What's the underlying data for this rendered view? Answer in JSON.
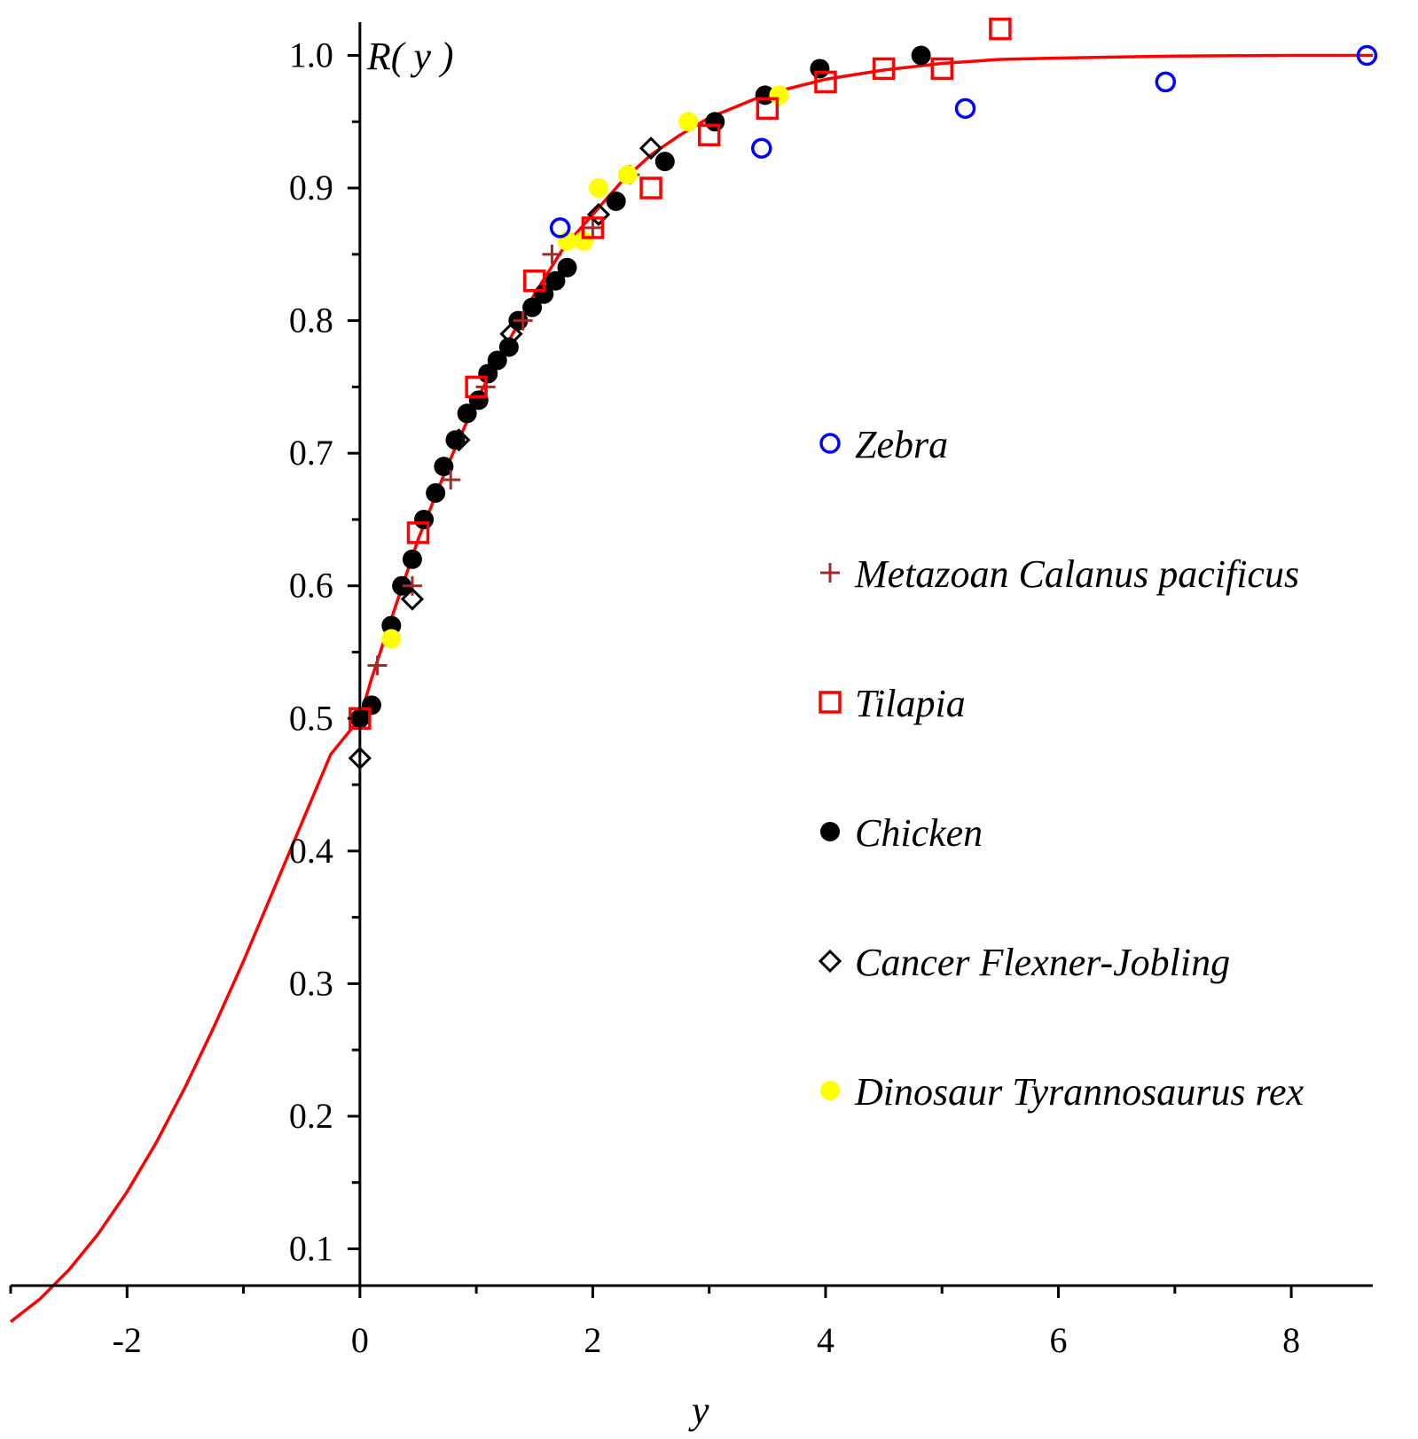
{
  "chart_data": {
    "type": "scatter",
    "title": "",
    "xlabel": "y",
    "ylabel": "R( y )",
    "xlim": [
      -3,
      8.7
    ],
    "ylim": [
      0.045,
      1.035
    ],
    "xticks": [
      -2,
      0,
      2,
      4,
      6,
      8
    ],
    "xtick_labels": [
      "-2",
      "0",
      "2",
      "4",
      "6",
      "8"
    ],
    "yticks": [
      0.1,
      0.2,
      0.3,
      0.4,
      0.5,
      0.6,
      0.7,
      0.8,
      0.9,
      1.0
    ],
    "ytick_labels": [
      "0.1",
      "0.2",
      "0.3",
      "0.4",
      "0.5",
      "0.6",
      "0.7",
      "0.8",
      "0.9",
      "1.0"
    ],
    "grid": false,
    "legend_position": "center-right",
    "curve": {
      "name": "Fitted curve",
      "color": "#ff0000",
      "points": [
        [
          -3.0,
          0.045
        ],
        [
          -2.75,
          0.062
        ],
        [
          -2.5,
          0.084
        ],
        [
          -2.25,
          0.111
        ],
        [
          -2.0,
          0.143
        ],
        [
          -1.75,
          0.18
        ],
        [
          -1.5,
          0.222
        ],
        [
          -1.25,
          0.268
        ],
        [
          -1.0,
          0.317
        ],
        [
          -0.75,
          0.369
        ],
        [
          -0.5,
          0.421
        ],
        [
          -0.25,
          0.473
        ],
        [
          0.0,
          0.5
        ],
        [
          0.1,
          0.53
        ],
        [
          0.25,
          0.57
        ],
        [
          0.5,
          0.635
        ],
        [
          0.75,
          0.69
        ],
        [
          1.0,
          0.74
        ],
        [
          1.25,
          0.78
        ],
        [
          1.5,
          0.82
        ],
        [
          1.75,
          0.855
        ],
        [
          2.0,
          0.88
        ],
        [
          2.25,
          0.905
        ],
        [
          2.5,
          0.925
        ],
        [
          2.75,
          0.94
        ],
        [
          3.0,
          0.953
        ],
        [
          3.5,
          0.971
        ],
        [
          4.0,
          0.982
        ],
        [
          4.5,
          0.989
        ],
        [
          5.0,
          0.994
        ],
        [
          5.5,
          0.997
        ],
        [
          6.0,
          0.998
        ],
        [
          7.0,
          0.9995
        ],
        [
          8.0,
          1.0
        ],
        [
          8.7,
          1.0
        ]
      ]
    },
    "series": [
      {
        "name": "Zebra",
        "marker": "circle-open",
        "color": "#0000ff",
        "points": [
          [
            1.72,
            0.87
          ],
          [
            3.45,
            0.93
          ],
          [
            5.2,
            0.96
          ],
          [
            6.92,
            0.98
          ],
          [
            8.65,
            1.0
          ]
        ]
      },
      {
        "name": "Metazoan Calanus pacificus",
        "marker": "plus",
        "color": "#a52a2a",
        "points": [
          [
            0.15,
            0.54
          ],
          [
            0.45,
            0.6
          ],
          [
            0.78,
            0.68
          ],
          [
            1.08,
            0.75
          ],
          [
            1.4,
            0.8
          ],
          [
            1.65,
            0.85
          ],
          [
            2.0,
            0.87
          ],
          [
            2.32,
            0.91
          ]
        ]
      },
      {
        "name": "Tilapia",
        "marker": "square-open",
        "color": "#ff0000",
        "points": [
          [
            0.0,
            0.5
          ],
          [
            0.5,
            0.64
          ],
          [
            1.0,
            0.75
          ],
          [
            1.5,
            0.83
          ],
          [
            2.0,
            0.87
          ],
          [
            2.5,
            0.9
          ],
          [
            3.0,
            0.94
          ],
          [
            3.5,
            0.96
          ],
          [
            4.0,
            0.98
          ],
          [
            4.5,
            0.99
          ],
          [
            5.0,
            0.99
          ],
          [
            5.5,
            1.02
          ]
        ]
      },
      {
        "name": "Chicken",
        "marker": "circle-filled",
        "color": "#000000",
        "points": [
          [
            0.0,
            0.5
          ],
          [
            0.1,
            0.51
          ],
          [
            0.27,
            0.57
          ],
          [
            0.36,
            0.6
          ],
          [
            0.45,
            0.62
          ],
          [
            0.55,
            0.65
          ],
          [
            0.65,
            0.67
          ],
          [
            0.72,
            0.69
          ],
          [
            0.82,
            0.71
          ],
          [
            0.92,
            0.73
          ],
          [
            1.02,
            0.74
          ],
          [
            1.1,
            0.76
          ],
          [
            1.18,
            0.77
          ],
          [
            1.28,
            0.78
          ],
          [
            1.36,
            0.8
          ],
          [
            1.48,
            0.81
          ],
          [
            1.58,
            0.82
          ],
          [
            1.68,
            0.83
          ],
          [
            1.78,
            0.84
          ],
          [
            2.2,
            0.89
          ],
          [
            2.62,
            0.92
          ],
          [
            3.05,
            0.95
          ],
          [
            3.48,
            0.97
          ],
          [
            3.95,
            0.99
          ],
          [
            4.82,
            1.0
          ]
        ]
      },
      {
        "name": "Cancer Flexner-Jobling",
        "marker": "diamond-open",
        "color": "#000000",
        "points": [
          [
            0.0,
            0.47
          ],
          [
            0.45,
            0.59
          ],
          [
            0.85,
            0.71
          ],
          [
            1.3,
            0.79
          ],
          [
            2.05,
            0.88
          ],
          [
            2.5,
            0.93
          ]
        ]
      },
      {
        "name": "Dinosaur Tyrannosaurus rex",
        "marker": "circle-filled",
        "color": "#ffff00",
        "points": [
          [
            0.27,
            0.56
          ],
          [
            1.78,
            0.86
          ],
          [
            1.92,
            0.86
          ],
          [
            2.05,
            0.9
          ],
          [
            2.3,
            0.91
          ],
          [
            2.82,
            0.95
          ],
          [
            3.6,
            0.97
          ]
        ]
      }
    ]
  }
}
